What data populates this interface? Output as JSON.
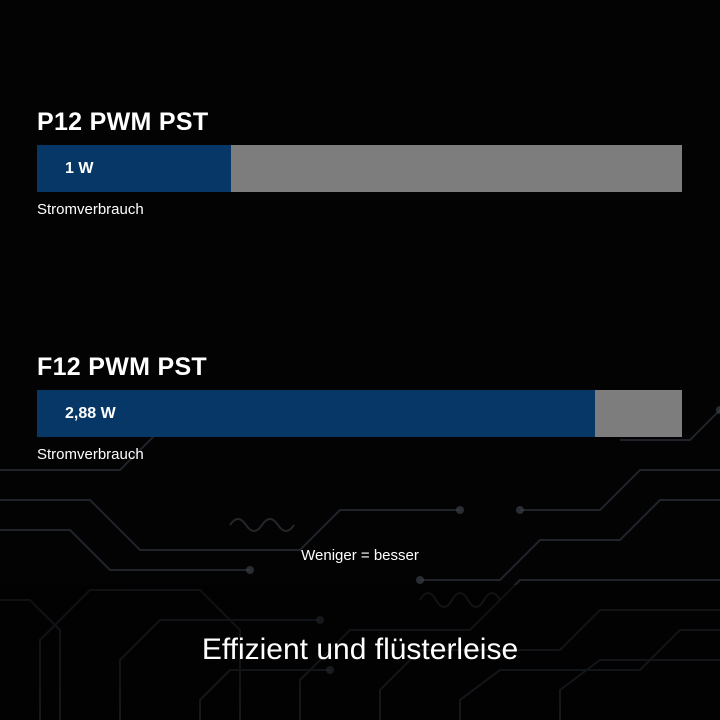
{
  "chart_data": {
    "type": "bar",
    "orientation": "horizontal",
    "categories": [
      "P12 PWM PST",
      "F12 PWM PST"
    ],
    "series": [
      {
        "values": [
          1,
          2.88
        ]
      }
    ],
    "value_labels": [
      "1 W",
      "2,88 W"
    ],
    "metric_label": "Stromverbrauch",
    "unit": "W",
    "xlim": [
      0,
      3.33
    ],
    "grid": false,
    "note": "Weniger = besser",
    "colors": {
      "fill": "#063766",
      "track": "#7d7d7d"
    }
  },
  "headline": "Effizient und flüsterleise"
}
